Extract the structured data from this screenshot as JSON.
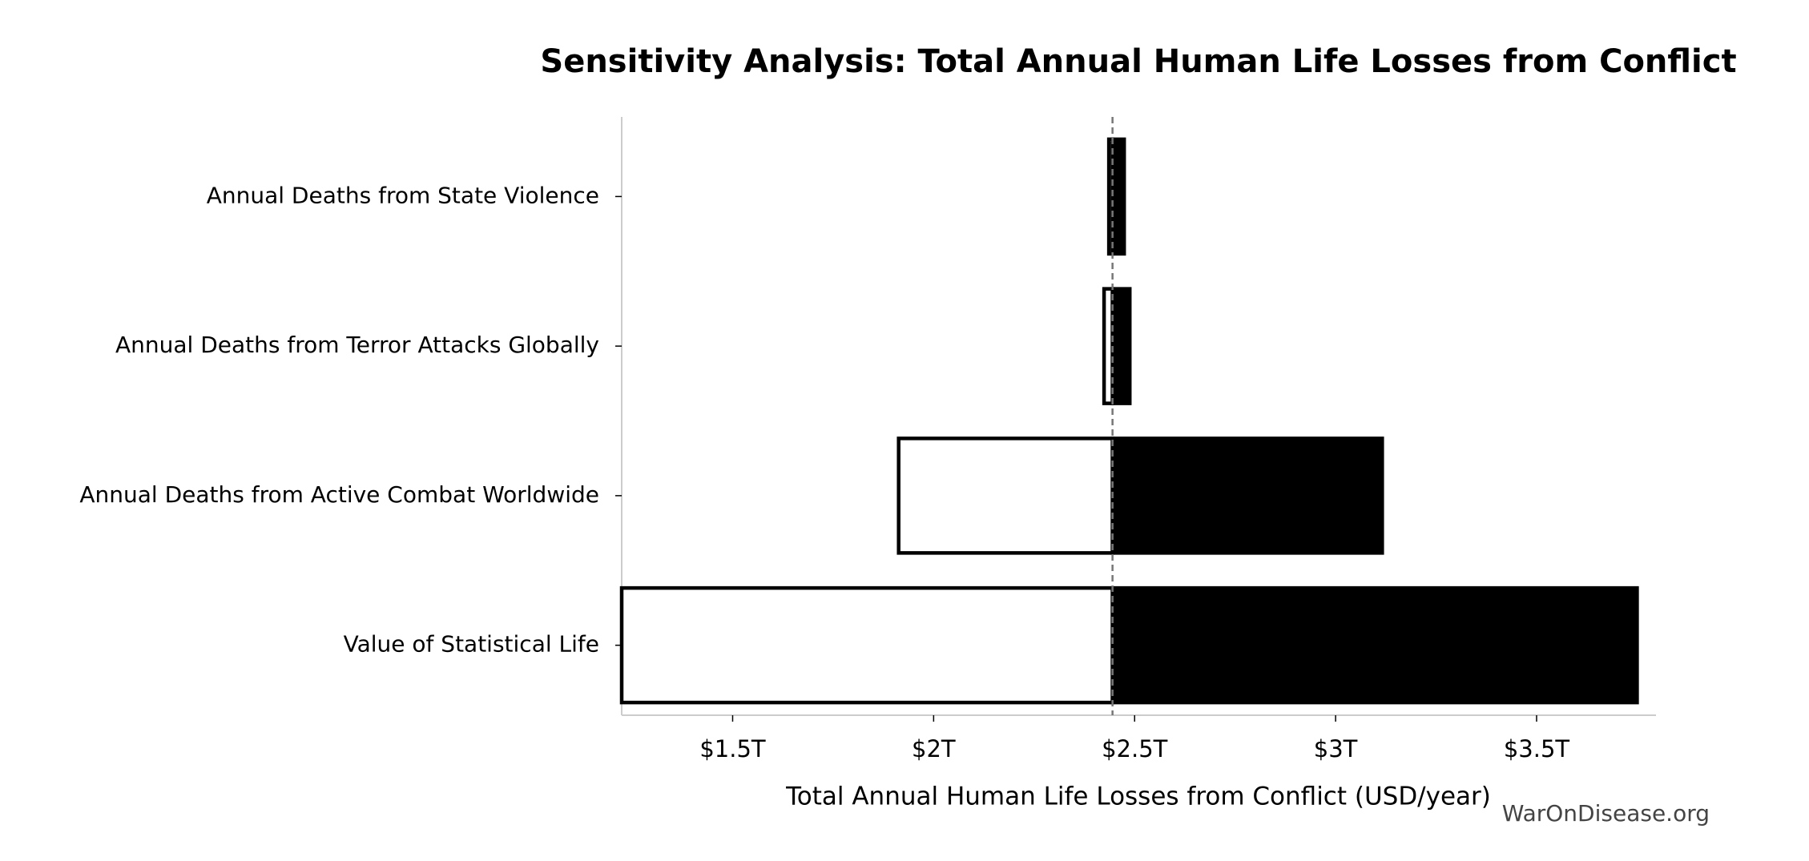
{
  "chart_data": {
    "type": "tornado",
    "title": "Sensitivity Analysis: Total Annual Human Life Losses from Conflict",
    "xlabel": "Total Annual Human Life Losses from Conflict (USD/year)",
    "watermark": "WarOnDisease.org",
    "categories": [
      "Annual Deaths from State Violence",
      "Annual Deaths from Terror Attacks Globally",
      "Annual Deaths from Active Combat Worldwide",
      "Value of Statistical Life"
    ],
    "baseline": 2.445,
    "low_values": [
      2.436,
      2.424,
      1.913,
      1.224
    ],
    "high_values": [
      2.474,
      2.488,
      3.116,
      3.75
    ],
    "low_color": "#ffffff",
    "high_color": "#000000",
    "xlim": [
      1.224,
      3.797
    ],
    "xticks": [
      {
        "value": 1.5,
        "label": "$1.5T"
      },
      {
        "value": 2,
        "label": "$2T"
      },
      {
        "value": 2.5,
        "label": "$2.5T"
      },
      {
        "value": 3,
        "label": "$3T"
      },
      {
        "value": 3.5,
        "label": "$3.5T"
      }
    ]
  }
}
